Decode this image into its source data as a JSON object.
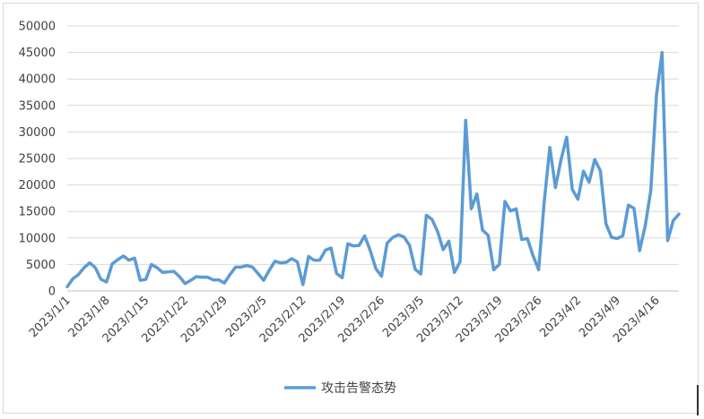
{
  "chart_data": {
    "type": "line",
    "title": "",
    "xlabel": "",
    "ylabel": "",
    "ylim": [
      0,
      50000
    ],
    "yticks": [
      0,
      5000,
      10000,
      15000,
      20000,
      25000,
      30000,
      35000,
      40000,
      45000,
      50000
    ],
    "xtick_labels": [
      "2023/1/1",
      "2023/1/8",
      "2023/1/15",
      "2023/1/22",
      "2023/1/29",
      "2023/2/5",
      "2023/2/12",
      "2023/2/19",
      "2023/2/26",
      "2023/3/5",
      "2023/3/12",
      "2023/3/19",
      "2023/3/26",
      "2023/4/2",
      "2023/4/9",
      "2023/4/16"
    ],
    "x_start": "2023/1/1",
    "x_end": "2023/4/21",
    "grid": true,
    "legend_position": "bottom",
    "series": [
      {
        "name": "攻击告警态势",
        "color": "#5b9bd5",
        "values": [
          800,
          2300,
          3100,
          4400,
          5300,
          4400,
          2200,
          1700,
          5100,
          5900,
          6600,
          5800,
          6200,
          2000,
          2200,
          5000,
          4400,
          3500,
          3600,
          3700,
          2700,
          1400,
          2000,
          2700,
          2600,
          2600,
          2100,
          2100,
          1500,
          3100,
          4500,
          4500,
          4800,
          4500,
          3300,
          2000,
          3900,
          5600,
          5300,
          5400,
          6100,
          5500,
          1200,
          6500,
          5800,
          5800,
          7700,
          8100,
          3300,
          2500,
          8900,
          8500,
          8600,
          10400,
          7600,
          4200,
          2800,
          9000,
          10100,
          10600,
          10200,
          8600,
          4100,
          3200,
          14300,
          13500,
          11200,
          7800,
          9400,
          3500,
          5500,
          32200,
          15500,
          18300,
          11500,
          10500,
          4000,
          5000,
          16900,
          15100,
          15500,
          9700,
          9900,
          6700,
          4000,
          16800,
          27100,
          19500,
          24800,
          29000,
          19200,
          17300,
          22600,
          20500,
          24800,
          22700,
          12700,
          10100,
          9900,
          10400,
          16200,
          15600,
          7600,
          12300,
          19000,
          36900,
          45000,
          9500,
          13300,
          14500
        ]
      }
    ]
  }
}
